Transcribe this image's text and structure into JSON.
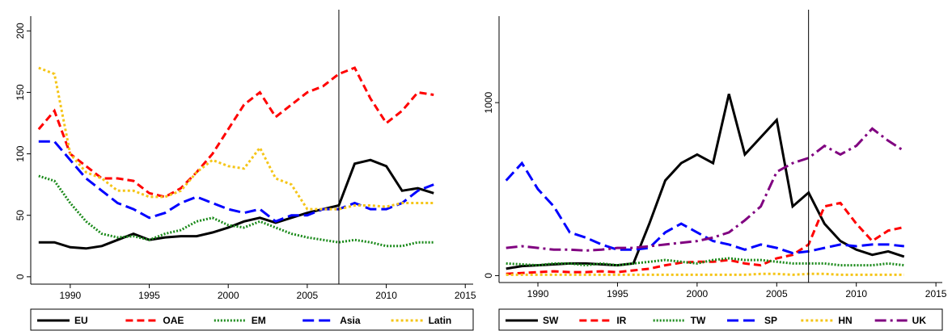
{
  "chart_data": [
    {
      "type": "line",
      "x": [
        1988,
        1989,
        1990,
        1991,
        1992,
        1993,
        1994,
        1995,
        1996,
        1997,
        1998,
        1999,
        2000,
        2001,
        2002,
        2003,
        2004,
        2005,
        2006,
        2007,
        2008,
        2009,
        2010,
        2011,
        2012,
        2013
      ],
      "series": [
        {
          "name": "EU",
          "color": "#000000",
          "values": [
            28,
            28,
            24,
            23,
            25,
            30,
            35,
            30,
            32,
            33,
            33,
            36,
            40,
            45,
            48,
            44,
            48,
            52,
            55,
            58,
            92,
            95,
            90,
            70,
            72,
            68
          ]
        },
        {
          "name": "OAE",
          "color": "#ff0000",
          "values": [
            120,
            135,
            100,
            90,
            80,
            80,
            78,
            68,
            65,
            72,
            85,
            100,
            120,
            140,
            150,
            130,
            140,
            150,
            155,
            165,
            170,
            145,
            125,
            135,
            150,
            148
          ]
        },
        {
          "name": "EM",
          "color": "#1a8a1a",
          "values": [
            82,
            78,
            60,
            45,
            35,
            32,
            33,
            30,
            35,
            38,
            45,
            48,
            42,
            40,
            45,
            40,
            35,
            32,
            30,
            28,
            30,
            28,
            25,
            25,
            28,
            28
          ]
        },
        {
          "name": "Asia",
          "color": "#0000ff",
          "values": [
            110,
            110,
            95,
            80,
            70,
            60,
            55,
            48,
            52,
            60,
            65,
            60,
            55,
            52,
            55,
            45,
            50,
            50,
            55,
            55,
            60,
            55,
            55,
            60,
            70,
            75
          ]
        },
        {
          "name": "Latin",
          "color": "#f5c518",
          "values": [
            170,
            165,
            100,
            85,
            80,
            70,
            70,
            65,
            65,
            70,
            85,
            95,
            90,
            88,
            105,
            80,
            75,
            55,
            55,
            55,
            58,
            58,
            57,
            60,
            60,
            60
          ]
        }
      ],
      "xlim": [
        1987.5,
        2015.5
      ],
      "xticks": [
        1990,
        1995,
        2000,
        2005,
        2010,
        2015
      ],
      "ylim": [
        -6,
        212
      ],
      "yticks": [
        0,
        50,
        100,
        150,
        200
      ],
      "vline": 2007
    },
    {
      "type": "line",
      "x": [
        1988,
        1989,
        1990,
        1991,
        1992,
        1993,
        1994,
        1995,
        1996,
        1997,
        1998,
        1999,
        2000,
        2001,
        2002,
        2003,
        2004,
        2005,
        2006,
        2007,
        2008,
        2009,
        2010,
        2011,
        2012,
        2013
      ],
      "series": [
        {
          "name": "SW",
          "color": "#000000",
          "values": [
            40,
            55,
            60,
            65,
            70,
            70,
            65,
            60,
            70,
            300,
            550,
            650,
            700,
            650,
            1050,
            700,
            800,
            900,
            400,
            480,
            300,
            200,
            150,
            120,
            140,
            110
          ]
        },
        {
          "name": "IR",
          "color": "#ff0000",
          "values": [
            10,
            15,
            20,
            25,
            20,
            20,
            25,
            20,
            30,
            40,
            60,
            75,
            80,
            80,
            90,
            70,
            60,
            100,
            120,
            180,
            400,
            420,
            300,
            200,
            260,
            280
          ]
        },
        {
          "name": "TW",
          "color": "#1a8a1a",
          "values": [
            70,
            65,
            60,
            70,
            70,
            60,
            70,
            60,
            70,
            80,
            90,
            80,
            70,
            90,
            100,
            90,
            90,
            80,
            70,
            70,
            70,
            60,
            60,
            60,
            70,
            60
          ]
        },
        {
          "name": "SP",
          "color": "#0000ff",
          "values": [
            550,
            650,
            500,
            400,
            250,
            220,
            180,
            150,
            150,
            160,
            250,
            300,
            250,
            200,
            180,
            150,
            180,
            160,
            130,
            140,
            160,
            180,
            170,
            180,
            180,
            170
          ]
        },
        {
          "name": "HN",
          "color": "#f5c518",
          "values": [
            5,
            5,
            5,
            5,
            5,
            5,
            5,
            5,
            5,
            5,
            5,
            5,
            5,
            5,
            5,
            5,
            10,
            10,
            5,
            10,
            10,
            5,
            5,
            5,
            5,
            5
          ]
        },
        {
          "name": "UK",
          "color": "#800080",
          "values": [
            160,
            170,
            160,
            150,
            150,
            145,
            150,
            160,
            160,
            170,
            180,
            190,
            200,
            220,
            250,
            320,
            400,
            600,
            650,
            680,
            750,
            700,
            750,
            850,
            780,
            720
          ]
        }
      ],
      "xlim": [
        1987.56,
        2015.4
      ],
      "xticks": [
        1990,
        1995,
        2000,
        2005,
        2010,
        2015
      ],
      "ylim": [
        -40,
        1500
      ],
      "yticks": [
        0,
        1000
      ],
      "vline": 2007
    }
  ]
}
